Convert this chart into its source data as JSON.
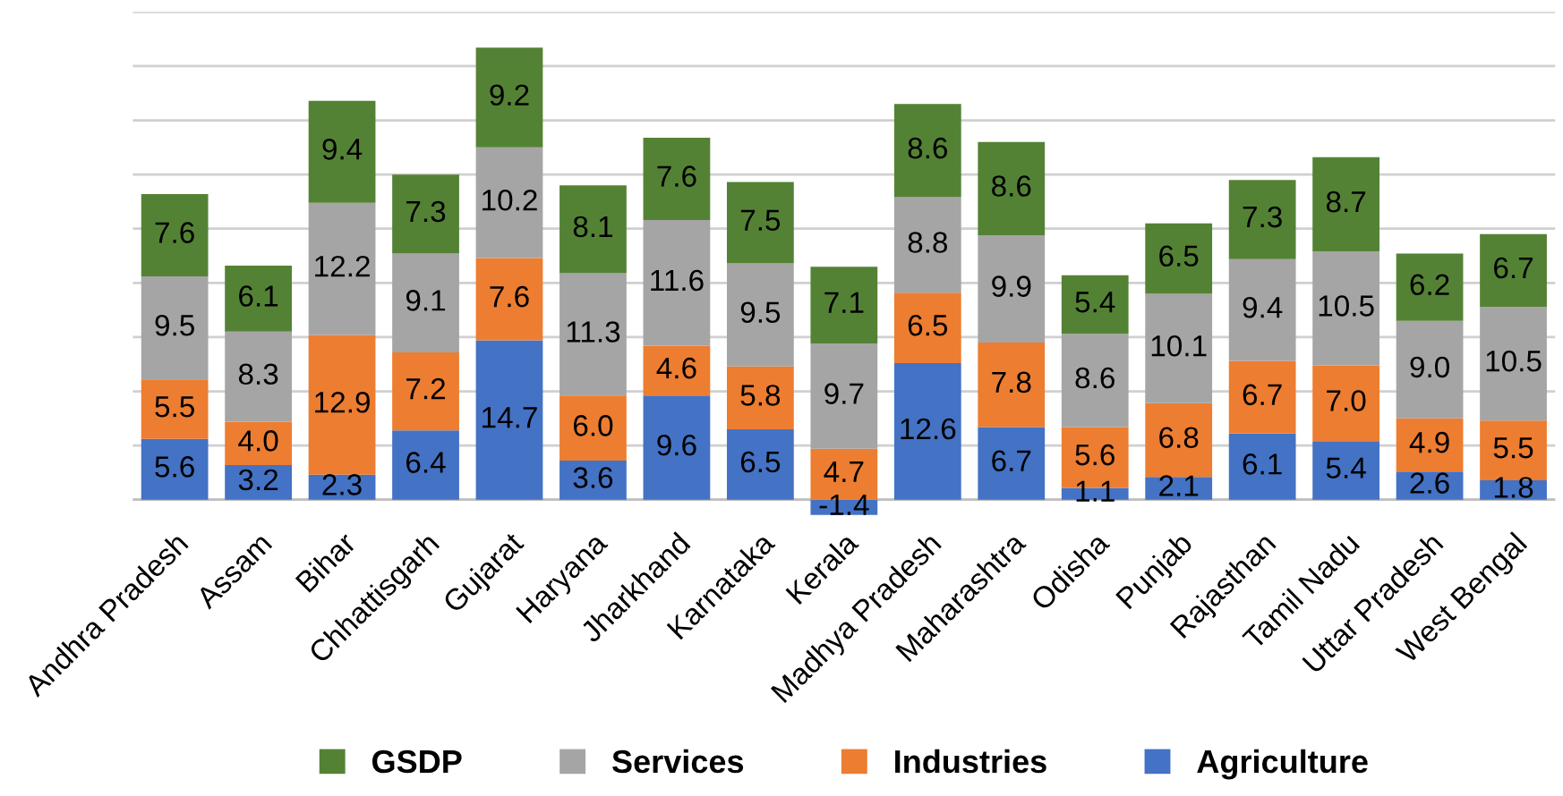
{
  "chart_data": {
    "type": "bar",
    "stacked": true,
    "grid": "y",
    "legend": "bottom",
    "tick_labels": "x",
    "categories": [
      "Andhra Pradesh",
      "Assam",
      "Bihar",
      "Chhattisgarh",
      "Gujarat",
      "Haryana",
      "Jharkhand",
      "Karnataka",
      "Kerala",
      "Madhya Pradesh",
      "Maharashtra",
      "Odisha",
      "Punjab",
      "Rajasthan",
      "Tamil Nadu",
      "Uttar Pradesh",
      "West Bengal"
    ],
    "ylim": [
      -2,
      45
    ],
    "yticks": [
      {
        "value": 0,
        "label": null
      },
      {
        "value": 5,
        "label": null
      },
      {
        "value": 10,
        "label": null
      },
      {
        "value": 15,
        "label": null
      },
      {
        "value": 20,
        "label": null
      },
      {
        "value": 25,
        "label": null
      },
      {
        "value": 30,
        "label": null
      },
      {
        "value": 35,
        "label": null
      },
      {
        "value": 40,
        "label": null
      },
      {
        "value": 45,
        "label": null
      }
    ],
    "series": [
      {
        "name": "Agriculture",
        "color": "#4472c4",
        "values": [
          5.6,
          3.2,
          2.3,
          6.4,
          14.7,
          3.6,
          9.6,
          6.5,
          -1.4,
          12.6,
          6.7,
          1.1,
          2.1,
          6.1,
          5.4,
          2.6,
          1.8
        ],
        "value_labels": [
          "5.6",
          "3.2",
          "2.3",
          "6.4",
          "14.7",
          "3.6",
          "9.6",
          "6.5",
          "-1.4",
          "12.6",
          "6.7",
          "1.1",
          "2.1",
          "6.1",
          "5.4",
          "2.6",
          "1.8"
        ]
      },
      {
        "name": "Industries",
        "color": "#ed7d31",
        "values": [
          5.5,
          4.0,
          12.9,
          7.2,
          7.6,
          6.0,
          4.6,
          5.8,
          4.7,
          6.5,
          7.8,
          5.6,
          6.8,
          6.7,
          7.0,
          4.9,
          5.5
        ],
        "value_labels": [
          "5.5",
          "4.0",
          "12.9",
          "7.2",
          "7.6",
          "6.0",
          "4.6",
          "5.8",
          "4.7",
          "6.5",
          "7.8",
          "5.6",
          "6.8",
          "6.7",
          "7.0",
          "4.9",
          "5.5"
        ]
      },
      {
        "name": "Services",
        "color": "#a5a5a5",
        "values": [
          9.5,
          8.3,
          12.2,
          9.1,
          10.2,
          11.3,
          11.6,
          9.5,
          9.7,
          8.8,
          9.9,
          8.6,
          10.1,
          9.4,
          10.5,
          9.0,
          10.5
        ],
        "value_labels": [
          "9.5",
          "8.3",
          "12.2",
          "9.1",
          "10.2",
          "11.3",
          "11.6",
          "9.5",
          "9.7",
          "8.8",
          "9.9",
          "8.6",
          "10.1",
          "9.4",
          "10.5",
          "9.0",
          "10.5"
        ]
      },
      {
        "name": "GSDP",
        "color": "#548235",
        "values": [
          7.6,
          6.1,
          9.4,
          7.3,
          9.2,
          8.1,
          7.6,
          7.5,
          7.1,
          8.6,
          8.6,
          5.4,
          6.5,
          7.3,
          8.7,
          6.2,
          6.7
        ],
        "value_labels": [
          "7.6",
          "6.1",
          "9.4",
          "7.3",
          "9.2",
          "8.1",
          "7.6",
          "7.5",
          "7.1",
          "8.6",
          "8.6",
          "5.4",
          "6.5",
          "7.3",
          "8.7",
          "6.2",
          "6.7"
        ]
      }
    ]
  }
}
